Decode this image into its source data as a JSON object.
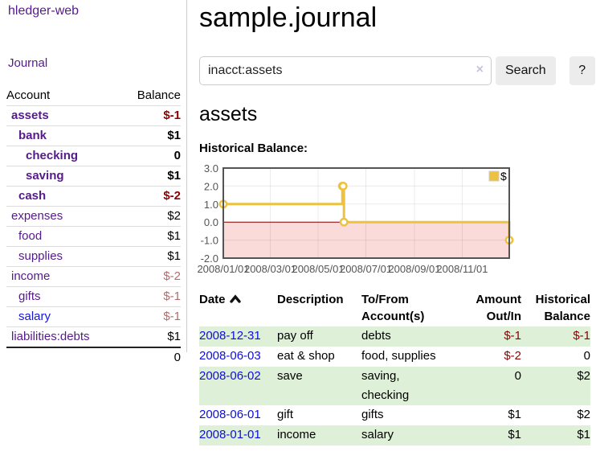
{
  "app": {
    "title": "hledger-web"
  },
  "sidebar": {
    "nav": {
      "journal": "Journal"
    },
    "table": {
      "account_header": "Account",
      "balance_header": "Balance",
      "accounts": [
        {
          "name": "assets",
          "depth": 1,
          "bold": true,
          "balance": "$-1"
        },
        {
          "name": "bank",
          "depth": 2,
          "bold": true,
          "balance": "$1"
        },
        {
          "name": "checking",
          "depth": 3,
          "bold": true,
          "balance": "0"
        },
        {
          "name": "saving",
          "depth": 3,
          "bold": true,
          "balance": "$1"
        },
        {
          "name": "cash",
          "depth": 2,
          "bold": true,
          "balance": "$-2"
        },
        {
          "name": "expenses",
          "depth": 1,
          "bold": false,
          "balance": "$2"
        },
        {
          "name": "food",
          "depth": 2,
          "bold": false,
          "balance": "$1"
        },
        {
          "name": "supplies",
          "depth": 2,
          "bold": false,
          "balance": "$1"
        },
        {
          "name": "income",
          "depth": 1,
          "bold": false,
          "balance": "$-2"
        },
        {
          "name": "gifts",
          "depth": 2,
          "bold": false,
          "balance": "$-1"
        },
        {
          "name": "salary",
          "depth": 2,
          "bold": false,
          "balance": "$-1",
          "unvisited": true
        },
        {
          "name": "liabilities:debts",
          "depth": 1,
          "bold": false,
          "balance": "$1"
        }
      ],
      "total": "0"
    }
  },
  "header": {
    "title": "sample.journal"
  },
  "search": {
    "query": "inacct:assets",
    "clear_icon": "×",
    "button_label": "Search",
    "help_label": "?"
  },
  "account_page": {
    "heading": "assets",
    "chart_title": "Historical Balance:"
  },
  "chart_data": {
    "type": "line",
    "step": true,
    "title": "Historical Balance",
    "series": [
      {
        "name": "$",
        "color": "#edc240",
        "points": [
          [
            "2008-01-01",
            1
          ],
          [
            "2008-06-01",
            2
          ],
          [
            "2008-06-02",
            2
          ],
          [
            "2008-06-03",
            0
          ],
          [
            "2008-12-31",
            -1
          ]
        ]
      }
    ],
    "x_range": [
      "2008-01-01",
      "2008-12-31"
    ],
    "x_ticks": [
      "2008/01/01",
      "2008/03/01",
      "2008/05/01",
      "2008/07/01",
      "2008/09/01",
      "2008/11/01"
    ],
    "y_range": [
      -2,
      3
    ],
    "y_ticks": [
      3.0,
      2.0,
      1.0,
      0.0,
      -1.0,
      -2.0
    ],
    "legend": {
      "label": "$",
      "position": "top-right"
    },
    "grid": true,
    "negative_region_color": "#fbdada",
    "zero_line_color": "#8b0000",
    "border_color": "#545454",
    "tick_label_color": "#545454"
  },
  "register": {
    "columns": [
      {
        "label": "Date",
        "sort_icon": "chevron-up"
      },
      {
        "label": "Description"
      },
      {
        "label": "To/From\nAccount(s)"
      },
      {
        "label": "Amount\nOut/In",
        "align": "right"
      },
      {
        "label": "Historical\nBalance",
        "align": "right"
      }
    ],
    "rows": [
      {
        "date": "2008-12-31",
        "description": "pay off",
        "accounts": "debts",
        "amount": "$-1",
        "balance": "$-1"
      },
      {
        "date": "2008-06-03",
        "description": "eat & shop",
        "accounts": "food, supplies",
        "amount": "$-2",
        "balance": "0"
      },
      {
        "date": "2008-06-02",
        "description": "save",
        "accounts": "saving, checking",
        "amount": "0",
        "balance": "$2"
      },
      {
        "date": "2008-06-01",
        "description": "gift",
        "accounts": "gifts",
        "amount": "$1",
        "balance": "$2"
      },
      {
        "date": "2008-01-01",
        "description": "income",
        "accounts": "salary",
        "amount": "$1",
        "balance": "$1"
      }
    ]
  },
  "colors": {
    "link_purple": "#551a8b",
    "link_blue": "#0d0de0",
    "negative_bold": "#8b0000",
    "negative_muted": "#b26b6b",
    "row_green": "#dff0d8",
    "series_gold": "#edc240",
    "negative_region_pink": "#fbdada",
    "zero_line_red": "#8b0000"
  }
}
